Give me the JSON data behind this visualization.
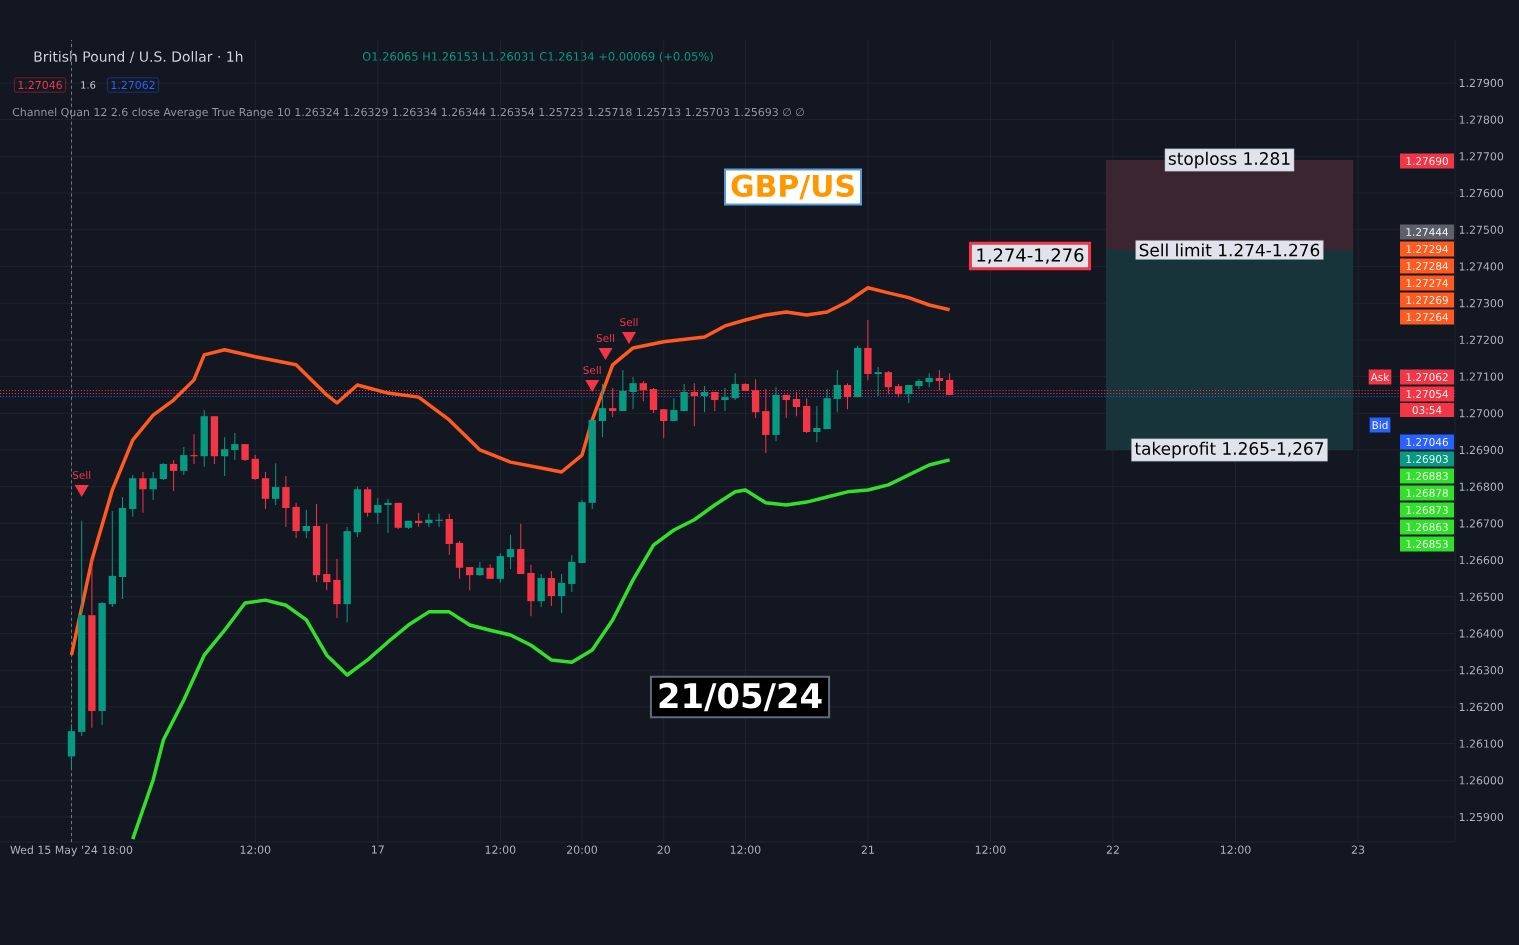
{
  "chart_data": {
    "type": "candlestick",
    "title": "British Pound / U.S. Dollar · 1h",
    "subtitle": "O1.26065 H1.26153 L1.26031 C1.26134 +0.00069 (+0.05%)",
    "categories": [
      "Wed 15 May '24 18:00",
      null,
      null,
      null,
      null,
      null,
      null,
      null,
      null,
      null,
      null,
      null,
      null,
      null,
      null,
      null,
      null,
      null,
      "12:00",
      null,
      null,
      null,
      null,
      null,
      null,
      null,
      null,
      null,
      null,
      null,
      "17",
      null,
      null,
      null,
      null,
      null,
      null,
      null,
      null,
      null,
      null,
      null,
      "12:00",
      null,
      null,
      null,
      null,
      null,
      null,
      null,
      "20:00",
      null,
      null,
      null,
      null,
      null,
      null,
      null,
      "20",
      null,
      null,
      null,
      null,
      null,
      null,
      null,
      "12:00",
      null,
      null,
      null,
      null,
      null,
      null,
      null,
      null,
      null,
      null,
      null,
      "21",
      null,
      null,
      null,
      null,
      null,
      null,
      null,
      null,
      null,
      null,
      null,
      "12:00",
      null,
      null,
      null,
      null,
      null,
      null,
      null,
      null,
      null,
      null,
      null,
      "22",
      null,
      null,
      null,
      null,
      null,
      null,
      null,
      null,
      null,
      null,
      null,
      "12:00",
      null,
      null,
      null,
      null,
      null,
      null,
      null,
      null,
      null,
      null,
      null,
      "23",
      null,
      null,
      null,
      null,
      null,
      null,
      null,
      null,
      null
    ],
    "colors": [
      "#089981",
      "#089981",
      "#f23645",
      "#089981",
      "#089981",
      "#089981",
      "#089981",
      "#f23645",
      "#089981",
      "#089981",
      "#f23645",
      "#089981",
      "#f23645",
      "#089981",
      "#f23645",
      "#089981",
      "#089981",
      "#f23645",
      "#f23645",
      "#f23645",
      "#089981",
      "#f23645",
      "#f23645",
      "#089981",
      "#f23645",
      "#f23645",
      "#f23645",
      "#089981",
      "#089981",
      "#f23645",
      "#089981",
      "#089981",
      "#f23645",
      "#089981",
      "#f23645",
      "#089981",
      "#089981",
      "#f23645",
      "#f23645",
      "#f23645",
      "#089981",
      "#f23645",
      "#089981",
      "#089981",
      "#f23645",
      "#f23645",
      "#089981",
      "#f23645",
      "#089981",
      "#089981",
      "#089981",
      "#089981",
      "#089981",
      "#f23645",
      "#089981",
      "#089981",
      "#f23645",
      "#f23645",
      "#f23645",
      "#089981",
      "#089981",
      "#f23645",
      "#089981",
      "#f23645",
      "#089981",
      "#089981",
      "#f23645",
      "#f23645",
      "#f23645",
      "#089981",
      "#f23645",
      "#f23645",
      "#f23645",
      "#089981",
      "#089981",
      "#089981",
      "#f23645",
      "#089981",
      "#f23645",
      "#089981",
      "#f23645",
      "#f23645",
      "#089981",
      "#089981",
      "#089981",
      "#f23645",
      "#f23645",
      null,
      null,
      null,
      null,
      null,
      null,
      null,
      null,
      null,
      null,
      null,
      null,
      null,
      null,
      null,
      null,
      null,
      null,
      null,
      null,
      null,
      null,
      null,
      null,
      null,
      null,
      null,
      null,
      null,
      null,
      null,
      null,
      null,
      null,
      null,
      null,
      null,
      null,
      null,
      null,
      null,
      null,
      null,
      null,
      null,
      null,
      null,
      null,
      null
    ],
    "ohlc": [
      [
        1.26065,
        1.26153,
        1.26031,
        1.26134
      ],
      [
        1.26132,
        1.26707,
        1.26121,
        1.2645
      ],
      [
        1.2645,
        1.26603,
        1.26143,
        1.26189
      ],
      [
        1.26189,
        1.26486,
        1.26151,
        1.26483
      ],
      [
        1.2648,
        1.26734,
        1.26472,
        1.26557
      ],
      [
        1.26554,
        1.26772,
        1.26494,
        1.26742
      ],
      [
        1.26739,
        1.26832,
        1.26718,
        1.26823
      ],
      [
        1.26823,
        1.2684,
        1.26729,
        1.26793
      ],
      [
        1.26793,
        1.2684,
        1.26764,
        1.26823
      ],
      [
        1.26821,
        1.26864,
        1.26818,
        1.26862
      ],
      [
        1.26862,
        1.26873,
        1.26788,
        1.26843
      ],
      [
        1.26843,
        1.26908,
        1.26832,
        1.26886
      ],
      [
        1.26886,
        1.26943,
        1.26862,
        1.26883
      ],
      [
        1.26883,
        1.27009,
        1.26854,
        1.26992
      ],
      [
        1.26992,
        1.26992,
        1.26862,
        1.26883
      ],
      [
        1.26883,
        1.26935,
        1.26829,
        1.26902
      ],
      [
        1.269,
        1.26946,
        1.26873,
        1.26916
      ],
      [
        1.26916,
        1.26916,
        1.2687,
        1.26873
      ],
      [
        1.26876,
        1.26886,
        1.26818,
        1.26821
      ],
      [
        1.26823,
        1.2684,
        1.26739,
        1.26767
      ],
      [
        1.26767,
        1.26864,
        1.2675,
        1.26799
      ],
      [
        1.26799,
        1.26829,
        1.2669,
        1.26742
      ],
      [
        1.26745,
        1.26756,
        1.2666,
        1.26679
      ],
      [
        1.26679,
        1.26737,
        1.2666,
        1.26693
      ],
      [
        1.26693,
        1.26753,
        1.2654,
        1.26559
      ],
      [
        1.26562,
        1.26699,
        1.26518,
        1.2654
      ],
      [
        1.26546,
        1.26603,
        1.26442,
        1.2648
      ],
      [
        1.2648,
        1.2669,
        1.26431,
        1.26679
      ],
      [
        1.26676,
        1.26801,
        1.26663,
        1.26793
      ],
      [
        1.26793,
        1.26799,
        1.26718,
        1.26729
      ],
      [
        1.26729,
        1.26769,
        1.26699,
        1.2675
      ],
      [
        1.2675,
        1.26767,
        1.26674,
        1.26756
      ],
      [
        1.26756,
        1.26756,
        1.26685,
        1.26688
      ],
      [
        1.26688,
        1.26707,
        1.26685,
        1.26707
      ],
      [
        1.26707,
        1.26729,
        1.2669,
        1.26701
      ],
      [
        1.26701,
        1.26726,
        1.2669,
        1.2671
      ],
      [
        1.26707,
        1.26726,
        1.2669,
        1.2671
      ],
      [
        1.26712,
        1.26726,
        1.26614,
        1.26644
      ],
      [
        1.26647,
        1.26652,
        1.26549,
        1.26579
      ],
      [
        1.26581,
        1.26581,
        1.26518,
        1.26559
      ],
      [
        1.26559,
        1.26595,
        1.26557,
        1.26579
      ],
      [
        1.26579,
        1.26589,
        1.26549,
        1.26549
      ],
      [
        1.26549,
        1.26619,
        1.26538,
        1.26611
      ],
      [
        1.26608,
        1.26669,
        1.26576,
        1.2663
      ],
      [
        1.2663,
        1.26699,
        1.26562,
        1.26562
      ],
      [
        1.26565,
        1.26587,
        1.26447,
        1.26488
      ],
      [
        1.26488,
        1.26562,
        1.26472,
        1.26551
      ],
      [
        1.26551,
        1.2657,
        1.26475,
        1.26502
      ],
      [
        1.26502,
        1.26562,
        1.26456,
        1.26538
      ],
      [
        1.26535,
        1.26614,
        1.26513,
        1.26595
      ],
      [
        1.26592,
        1.26764,
        1.26592,
        1.26758
      ],
      [
        1.26756,
        1.26982,
        1.26739,
        1.26982
      ],
      [
        1.26979,
        1.2708,
        1.26935,
        1.27014
      ],
      [
        1.27014,
        1.27069,
        1.2699,
        1.27006
      ],
      [
        1.27006,
        1.27118,
        1.27006,
        1.27061
      ],
      [
        1.27058,
        1.27099,
        1.27011,
        1.27082
      ],
      [
        1.27082,
        1.27088,
        1.27033,
        1.27063
      ],
      [
        1.27066,
        1.27069,
        1.27001,
        1.27009
      ],
      [
        1.27011,
        1.27011,
        1.26932,
        1.26979
      ],
      [
        1.26979,
        1.27041,
        1.26979,
        1.27009
      ],
      [
        1.27006,
        1.2708,
        1.27006,
        1.27058
      ],
      [
        1.27058,
        1.27082,
        1.26965,
        1.27047
      ],
      [
        1.27047,
        1.27074,
        1.27003,
        1.27058
      ],
      [
        1.27058,
        1.27058,
        1.27006,
        1.27036
      ],
      [
        1.27036,
        1.27069,
        1.27006,
        1.27044
      ],
      [
        1.27041,
        1.27109,
        1.27036,
        1.2708
      ],
      [
        1.2708,
        1.27082,
        1.27061,
        1.27061
      ],
      [
        1.27063,
        1.27093,
        1.26987,
        1.27003
      ],
      [
        1.27006,
        1.27066,
        1.26892,
        1.26941
      ],
      [
        1.26941,
        1.27071,
        1.26924,
        1.2705
      ],
      [
        1.2705,
        1.2705,
        1.26987,
        1.27036
      ],
      [
        1.27039,
        1.27058,
        1.26992,
        1.27017
      ],
      [
        1.2702,
        1.27041,
        1.26946,
        1.26949
      ],
      [
        1.26949,
        1.2702,
        1.26921,
        1.2696
      ],
      [
        1.26957,
        1.27066,
        1.26957,
        1.27041
      ],
      [
        1.27039,
        1.27118,
        1.27003,
        1.27077
      ],
      [
        1.27077,
        1.27082,
        1.27011,
        1.27044
      ],
      [
        1.27044,
        1.27184,
        1.27044,
        1.27178
      ],
      [
        1.27178,
        1.27254,
        1.27091,
        1.27107
      ],
      [
        1.27107,
        1.27126,
        1.27047,
        1.27112
      ],
      [
        1.27112,
        1.27115,
        1.27052,
        1.27071
      ],
      [
        1.27074,
        1.2708,
        1.27044,
        1.27052
      ],
      [
        1.27052,
        1.27077,
        1.27028,
        1.27077
      ],
      [
        1.27074,
        1.27093,
        1.27066,
        1.27088
      ],
      [
        1.27085,
        1.27109,
        1.27071,
        1.27096
      ],
      [
        1.27096,
        1.27118,
        1.27063,
        1.27088
      ],
      [
        1.27091,
        1.27109,
        1.2705,
        1.2705
      ],
      null,
      null,
      null,
      null,
      null,
      null,
      null,
      null,
      null,
      null,
      null,
      null,
      null,
      null,
      null,
      null,
      null,
      null,
      null,
      null,
      null,
      null,
      null,
      null,
      null,
      null,
      null,
      null,
      null,
      null,
      null,
      null,
      null,
      null,
      null,
      null,
      null,
      null,
      null,
      null,
      null,
      null,
      null,
      null,
      null,
      null,
      null,
      null,
      null
    ],
    "series": [
      {
        "type": "line",
        "color": "#ff5a1f",
        "values": [
          1.26341,
          null,
          1.266,
          null,
          1.26791,
          null,
          1.26927,
          null,
          1.26995,
          null,
          1.27036,
          null,
          1.27091,
          1.27159,
          null,
          1.27173,
          null,
          null,
          1.27154,
          null,
          null,
          null,
          1.27132,
          null,
          null,
          1.2705,
          1.27028,
          null,
          1.27077,
          null,
          null,
          1.27055,
          null,
          null,
          1.27044,
          null,
          null,
          1.26982,
          null,
          null,
          1.269,
          null,
          null,
          1.26867,
          null,
          null,
          1.26851,
          null,
          1.2684,
          null,
          1.26886,
          1.26982,
          null,
          1.27132,
          null,
          1.27178,
          null,
          null,
          1.27195,
          null,
          null,
          null,
          1.27208,
          null,
          1.27238,
          null,
          1.27254,
          null,
          1.27268,
          null,
          1.27276,
          null,
          1.27268,
          null,
          1.27276,
          null,
          1.27304,
          null,
          1.27342,
          null,
          1.27328,
          null,
          1.27315,
          null,
          1.27295,
          null,
          1.27282,
          null,
          null,
          null,
          null,
          null,
          null,
          null,
          null,
          null,
          null,
          null,
          null,
          null,
          null,
          null,
          null,
          null,
          null,
          null,
          null,
          null,
          null,
          null,
          null,
          null,
          null,
          null,
          null,
          null,
          null,
          null,
          null,
          null,
          null,
          null,
          null,
          null,
          null,
          null,
          null,
          null,
          null,
          null,
          null,
          null,
          null,
          null,
          null,
          null
        ]
      },
      {
        "type": "line",
        "color": "#32e02b",
        "values": [
          null,
          null,
          null,
          null,
          null,
          null,
          1.2584,
          null,
          1.26001,
          1.2611,
          null,
          1.26219,
          null,
          1.26341,
          null,
          1.26409,
          null,
          1.26483,
          null,
          1.26491,
          null,
          1.26477,
          null,
          1.26437,
          null,
          1.26341,
          null,
          1.26287,
          null,
          1.26328,
          null,
          1.26377,
          null,
          1.26423,
          null,
          1.26459,
          null,
          1.26459,
          null,
          1.26423,
          null,
          1.26409,
          null,
          1.26396,
          null,
          1.26368,
          null,
          1.26328,
          null,
          1.26322,
          null,
          1.26355,
          null,
          1.26437,
          null,
          1.26546,
          null,
          1.26641,
          null,
          1.26682,
          null,
          1.2671,
          null,
          1.2675,
          null,
          1.26786,
          1.26791,
          null,
          1.26756,
          null,
          1.2675,
          null,
          1.26758,
          null,
          1.26772,
          null,
          1.26786,
          null,
          1.26791,
          null,
          1.26805,
          null,
          1.26832,
          null,
          1.26859,
          null,
          1.26873,
          null,
          null,
          null,
          null,
          null,
          null,
          null,
          null,
          null,
          null,
          null,
          null,
          null,
          null,
          null,
          null,
          null,
          null,
          null,
          null,
          null,
          null,
          null,
          null,
          null,
          null,
          null,
          null,
          null,
          null,
          null,
          null,
          null,
          null,
          null,
          null,
          null,
          null,
          null,
          null,
          null,
          null,
          null,
          null,
          null,
          null,
          null,
          null,
          null
        ]
      }
    ],
    "ylim": [
      1.25832,
      1.28017
    ],
    "yticks": [
      {
        "value": 1.259,
        "label": "1.25900"
      },
      {
        "value": 1.26,
        "label": "1.26000"
      },
      {
        "value": 1.261,
        "label": "1.26100"
      },
      {
        "value": 1.262,
        "label": "1.26200"
      },
      {
        "value": 1.263,
        "label": "1.26300"
      },
      {
        "value": 1.264,
        "label": "1.26400"
      },
      {
        "value": 1.265,
        "label": "1.26500"
      },
      {
        "value": 1.266,
        "label": "1.26600"
      },
      {
        "value": 1.267,
        "label": "1.26700"
      },
      {
        "value": 1.268,
        "label": "1.26800"
      },
      {
        "value": 1.269,
        "label": "1.26900"
      },
      {
        "value": 1.27,
        "label": "1.27000"
      },
      {
        "value": 1.271,
        "label": "1.27100"
      },
      {
        "value": 1.272,
        "label": "1.27200"
      },
      {
        "value": 1.273,
        "label": "1.27300"
      },
      {
        "value": 1.274,
        "label": "1.27400"
      },
      {
        "value": 1.275,
        "label": "1.27500"
      },
      {
        "value": 1.276,
        "label": "1.27600"
      },
      {
        "value": 1.277,
        "label": "1.27700"
      },
      {
        "value": 1.278,
        "label": "1.27800"
      },
      {
        "value": 1.279,
        "label": "1.27900"
      }
    ],
    "grid": true,
    "ref_lines": [
      {
        "axis": "x",
        "value": "Wed 15 May '24 18:00",
        "color": "#787b86",
        "line_style": "dashed"
      },
      {
        "axis": "y",
        "value": 1.27062,
        "label": "Ask",
        "color": "#f23645",
        "line_style": "dotted"
      },
      {
        "axis": "y",
        "value": 1.27054,
        "label": "1.27054",
        "color": "#f23645",
        "line_style": "dotted"
      },
      {
        "axis": "y",
        "value": 1.27046,
        "label": "Bid",
        "color": "#2962ff",
        "line_style": "dotted"
      }
    ],
    "bands": [
      {
        "axis": "y",
        "from": 1.27445,
        "to": 1.2769,
        "label": "stoploss 1.281",
        "color": "#3b2530"
      },
      {
        "axis": "y",
        "from": 1.269,
        "to": 1.27445,
        "label": "takeprofit 1.265-1,267",
        "color": "#16343a"
      }
    ],
    "annotations": [
      "GBP/US",
      "21/05/24",
      "1,274-1,276",
      "Sell limit 1.274-1.276",
      "1.27046",
      "1.6",
      "1.27062",
      "Channel Quan 12 2.6 close Average True Range 10 1.26324 1.26329 1.26334 1.26344 1.26354 1.25723 1.25718 1.25713 1.25703 1.25693 ∅ ∅",
      "Sell",
      "Sell",
      "Sell",
      "Sell",
      "03:54",
      "1.27690",
      "1.27444",
      "1.27294",
      "1.27284",
      "1.27274",
      "1.27269",
      "1.27264",
      "1.27062",
      "1.27046",
      "1.26903",
      "1.26883",
      "1.26878",
      "1.26873",
      "1.26863",
      "1.26853"
    ]
  }
}
